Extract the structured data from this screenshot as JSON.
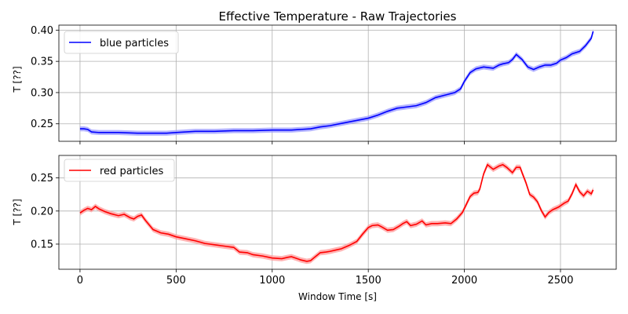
{
  "chart_data": {
    "type": "line",
    "title": "Effective Temperature - Raw Trajectories",
    "xlabel": "Window Time [s]",
    "xlim": [
      -110,
      2790
    ],
    "xticks": [
      0,
      500,
      1000,
      1500,
      2000,
      2500
    ],
    "grid": true,
    "panels": [
      {
        "ylabel": "T [??]",
        "ylim": [
          0.222,
          0.408
        ],
        "yticks": [
          0.25,
          0.3,
          0.35,
          0.4
        ],
        "legend_position": "upper-left",
        "series": [
          {
            "name": "blue particles",
            "color": "#0000ff",
            "band_color": "#9999ff",
            "band": 0.004,
            "x": [
              0,
              20,
              40,
              60,
              100,
              150,
              200,
              300,
              350,
              400,
              450,
              500,
              550,
              600,
              650,
              700,
              800,
              900,
              1000,
              1100,
              1150,
              1200,
              1250,
              1300,
              1350,
              1400,
              1450,
              1500,
              1550,
              1600,
              1650,
              1700,
              1750,
              1800,
              1850,
              1900,
              1950,
              1980,
              2000,
              2030,
              2060,
              2100,
              2150,
              2180,
              2200,
              2230,
              2250,
              2270,
              2300,
              2330,
              2360,
              2390,
              2420,
              2450,
              2480,
              2500,
              2530,
              2560,
              2600,
              2630,
              2660,
              2670
            ],
            "y": [
              0.242,
              0.242,
              0.241,
              0.237,
              0.236,
              0.236,
              0.236,
              0.235,
              0.235,
              0.235,
              0.235,
              0.236,
              0.237,
              0.238,
              0.238,
              0.238,
              0.239,
              0.239,
              0.24,
              0.24,
              0.241,
              0.242,
              0.245,
              0.247,
              0.25,
              0.253,
              0.256,
              0.259,
              0.264,
              0.27,
              0.275,
              0.277,
              0.279,
              0.284,
              0.292,
              0.296,
              0.3,
              0.306,
              0.318,
              0.332,
              0.338,
              0.341,
              0.339,
              0.344,
              0.346,
              0.348,
              0.353,
              0.361,
              0.353,
              0.341,
              0.337,
              0.341,
              0.344,
              0.344,
              0.347,
              0.352,
              0.356,
              0.362,
              0.366,
              0.375,
              0.387,
              0.398
            ]
          }
        ]
      },
      {
        "ylabel": "T [??]",
        "ylim": [
          0.112,
          0.284
        ],
        "yticks": [
          0.15,
          0.2,
          0.25
        ],
        "legend_position": "upper-left",
        "series": [
          {
            "name": "red particles",
            "color": "#ff0000",
            "band_color": "#ff9999",
            "band": 0.004,
            "x": [
              0,
              20,
              40,
              60,
              80,
              100,
              130,
              160,
              200,
              230,
              260,
              280,
              300,
              320,
              340,
              380,
              420,
              460,
              500,
              550,
              600,
              650,
              700,
              750,
              800,
              830,
              870,
              900,
              950,
              1000,
              1050,
              1080,
              1100,
              1120,
              1150,
              1180,
              1200,
              1220,
              1250,
              1280,
              1300,
              1330,
              1360,
              1400,
              1440,
              1470,
              1500,
              1520,
              1550,
              1570,
              1600,
              1630,
              1660,
              1680,
              1700,
              1720,
              1750,
              1780,
              1800,
              1830,
              1860,
              1900,
              1930,
              1960,
              1990,
              2010,
              2030,
              2050,
              2070,
              2080,
              2100,
              2120,
              2150,
              2180,
              2200,
              2220,
              2250,
              2270,
              2290,
              2300,
              2320,
              2340,
              2360,
              2380,
              2400,
              2420,
              2440,
              2460,
              2490,
              2520,
              2540,
              2560,
              2580,
              2600,
              2620,
              2640,
              2660,
              2670
            ],
            "y": [
              0.197,
              0.201,
              0.204,
              0.202,
              0.207,
              0.203,
              0.199,
              0.196,
              0.193,
              0.195,
              0.19,
              0.188,
              0.192,
              0.194,
              0.186,
              0.172,
              0.167,
              0.165,
              0.161,
              0.158,
              0.155,
              0.151,
              0.149,
              0.147,
              0.145,
              0.138,
              0.137,
              0.134,
              0.132,
              0.129,
              0.128,
              0.13,
              0.131,
              0.129,
              0.126,
              0.124,
              0.125,
              0.13,
              0.137,
              0.138,
              0.139,
              0.141,
              0.143,
              0.148,
              0.154,
              0.165,
              0.175,
              0.178,
              0.179,
              0.176,
              0.171,
              0.172,
              0.177,
              0.181,
              0.184,
              0.178,
              0.18,
              0.185,
              0.179,
              0.181,
              0.181,
              0.182,
              0.181,
              0.188,
              0.198,
              0.21,
              0.222,
              0.227,
              0.228,
              0.233,
              0.256,
              0.27,
              0.263,
              0.268,
              0.27,
              0.266,
              0.258,
              0.266,
              0.266,
              0.258,
              0.243,
              0.225,
              0.221,
              0.214,
              0.201,
              0.191,
              0.198,
              0.202,
              0.206,
              0.212,
              0.215,
              0.226,
              0.24,
              0.229,
              0.223,
              0.23,
              0.226,
              0.232
            ]
          }
        ]
      }
    ]
  }
}
